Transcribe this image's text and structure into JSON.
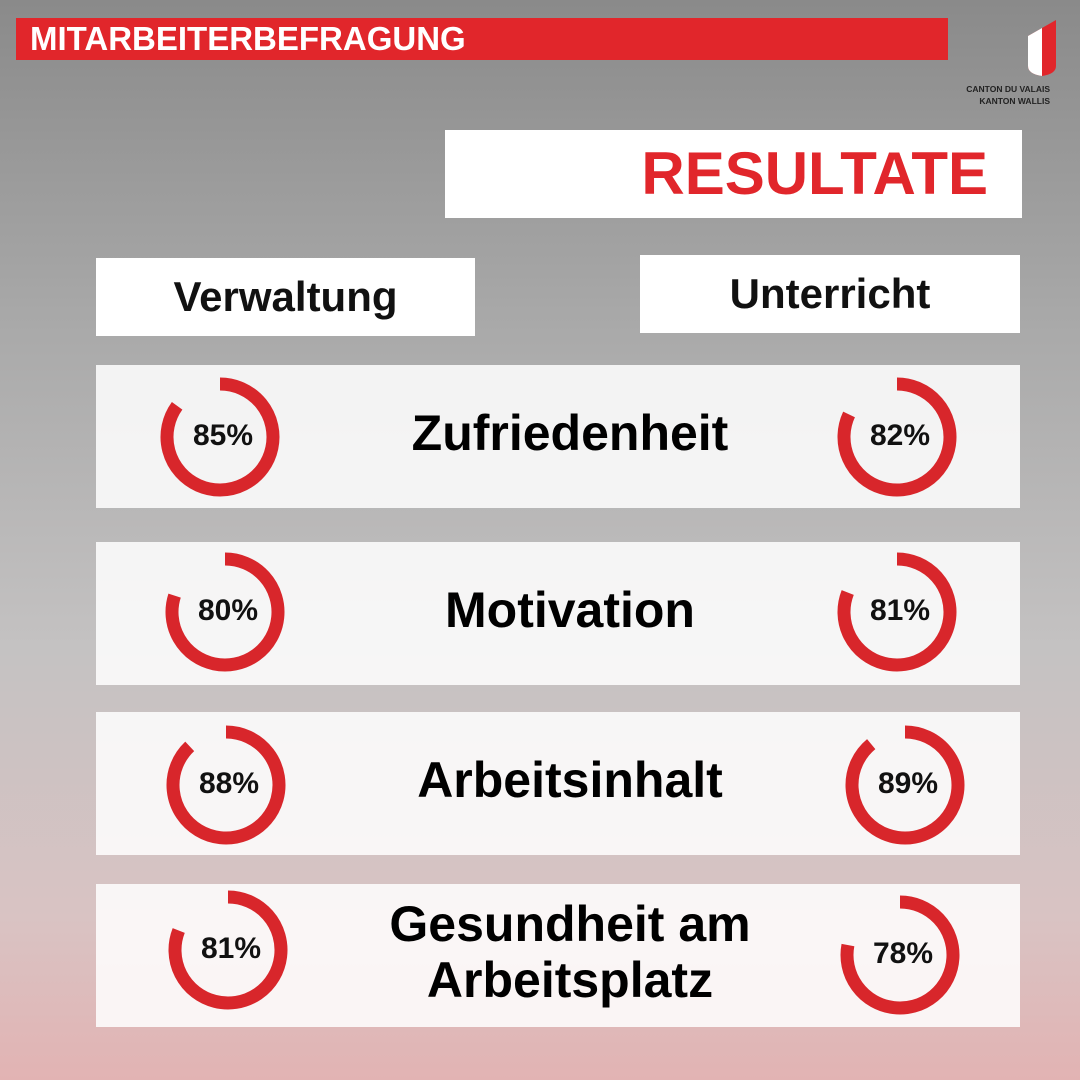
{
  "header": {
    "title": "MITARBEITERBEFRAGUNG",
    "logo_line1": "CANTON DU VALAIS",
    "logo_line2": "KANTON WALLIS"
  },
  "heading": "RESULTATE",
  "columns": [
    "Verwaltung",
    "Unterricht"
  ],
  "rows": [
    {
      "topic": "Zufriedenheit",
      "values": [
        85,
        82
      ],
      "value_labels": [
        "85%",
        "82%"
      ]
    },
    {
      "topic": "Motivation",
      "values": [
        80,
        81
      ],
      "value_labels": [
        "80%",
        "81%"
      ]
    },
    {
      "topic": "Arbeitsinhalt",
      "values": [
        88,
        89
      ],
      "value_labels": [
        "88%",
        "89%"
      ]
    },
    {
      "topic": "Gesundheit am Arbeitsplatz",
      "values": [
        81,
        78
      ],
      "value_labels": [
        "81%",
        "78%"
      ]
    }
  ],
  "color": "#d8262b"
}
